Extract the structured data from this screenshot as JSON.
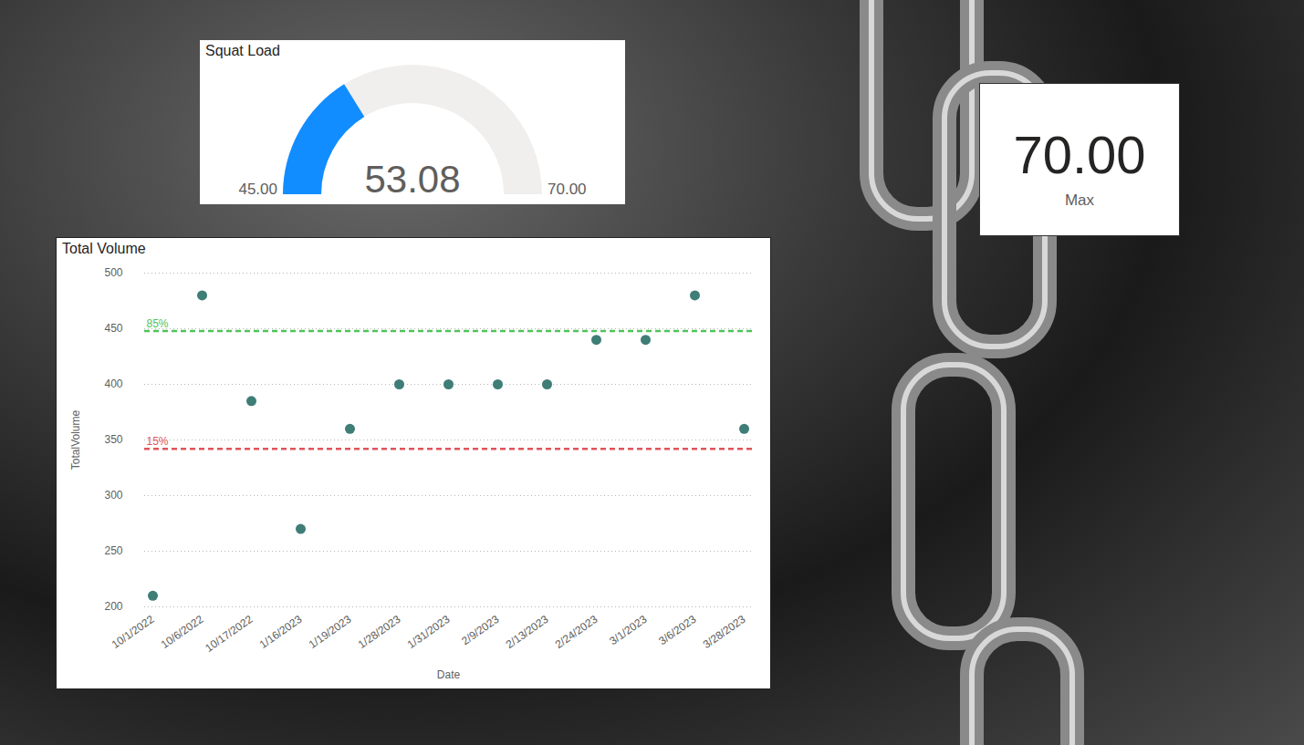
{
  "chart_data": [
    {
      "type": "gauge",
      "title": "Squat Load",
      "values": [
        53.08
      ],
      "ylim": [
        45,
        70
      ],
      "yticks": [
        {
          "value": 45,
          "label": "45.00"
        },
        {
          "value": 70,
          "label": "70.00"
        }
      ],
      "color": "#118dff",
      "data_labels": true
    },
    {
      "type": "card",
      "categories": [
        "Max"
      ],
      "values": [
        70
      ],
      "value_labels": [
        "70.00"
      ],
      "data_labels": true
    },
    {
      "type": "scatter",
      "title": "Total Volume",
      "x_label": "Date",
      "y_label": "TotalVolume",
      "categories": [
        "10/1/2022",
        "10/6/2022",
        "10/17/2022",
        "1/16/2023",
        "1/19/2023",
        "1/28/2023",
        "1/31/2023",
        "2/9/2023",
        "2/13/2023",
        "2/24/2023",
        "3/1/2023",
        "3/6/2023",
        "3/28/2023"
      ],
      "values": [
        210,
        480,
        385,
        270,
        360,
        400,
        400,
        400,
        400,
        440,
        440,
        480,
        360
      ],
      "color": "#3f7d77",
      "marker": "circle",
      "ylim": [
        200,
        500
      ],
      "yticks": [
        200,
        250,
        300,
        350,
        400,
        450,
        500
      ],
      "grid": true,
      "reference_lines": [
        {
          "label": "85%",
          "value": 448,
          "color": "#4fc35a",
          "line_style": "dashed"
        },
        {
          "label": "15%",
          "value": 342,
          "color": "#e0535a",
          "line_style": "dashed"
        }
      ]
    }
  ]
}
